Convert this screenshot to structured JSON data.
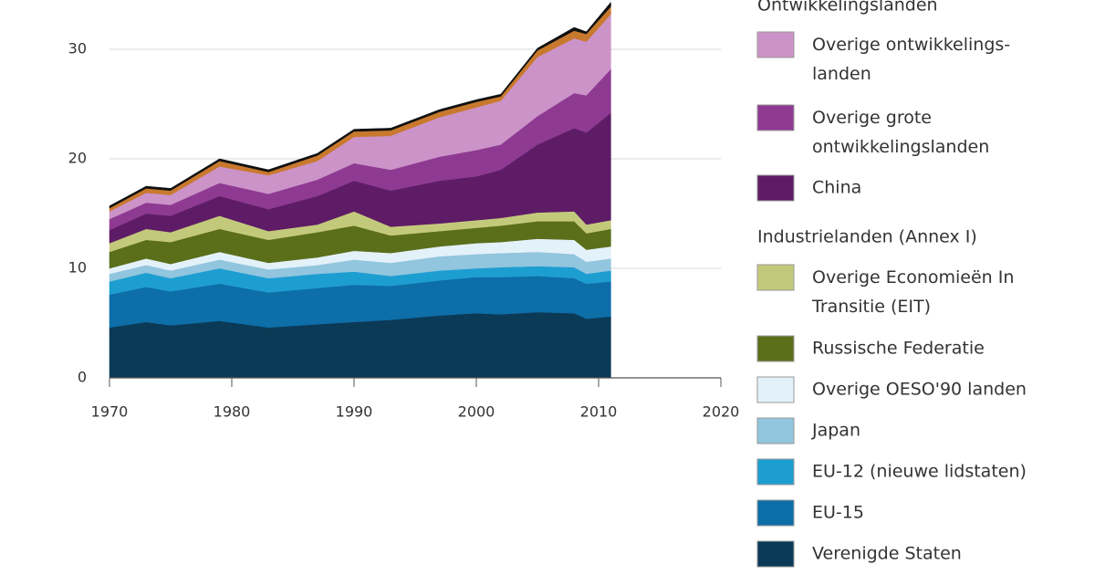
{
  "chart_data": {
    "type": "stacked_area",
    "x": [
      1970,
      1973,
      1975,
      1979,
      1983,
      1987,
      1990,
      1993,
      1997,
      2000,
      2002,
      2005,
      2008,
      2009,
      2011
    ],
    "xlim": [
      1970,
      2020
    ],
    "xticks": [
      1970,
      1980,
      1990,
      2000,
      2010,
      2020
    ],
    "ylim": [
      0,
      34.5
    ],
    "yticks": [
      0,
      10,
      20,
      30
    ],
    "grid": true,
    "legend_headings": [
      "Ontwikkelingslanden",
      "Industrielanden (Annex I)"
    ],
    "series": [
      {
        "name": "Verenigde Staten",
        "color": "#0b3a57",
        "values": [
          4.6,
          5.1,
          4.8,
          5.2,
          4.6,
          4.9,
          5.1,
          5.3,
          5.7,
          5.9,
          5.8,
          6.0,
          5.9,
          5.4,
          5.6
        ]
      },
      {
        "name": "EU-15",
        "color": "#0d6ea8",
        "values": [
          3.0,
          3.2,
          3.1,
          3.4,
          3.2,
          3.3,
          3.4,
          3.1,
          3.2,
          3.3,
          3.4,
          3.3,
          3.2,
          3.2,
          3.2
        ]
      },
      {
        "name": "EU-12 (nieuwe lidstaten)",
        "color": "#1d9ed1",
        "values": [
          1.2,
          1.3,
          1.2,
          1.4,
          1.3,
          1.3,
          1.2,
          0.9,
          0.9,
          0.8,
          0.9,
          0.9,
          1.0,
          0.9,
          1.0
        ]
      },
      {
        "name": "Japan",
        "color": "#92c5de",
        "values": [
          0.7,
          0.7,
          0.7,
          0.8,
          0.8,
          0.8,
          1.1,
          1.2,
          1.3,
          1.3,
          1.3,
          1.3,
          1.2,
          1.1,
          1.1
        ]
      },
      {
        "name": "Overige OESO'90 landen",
        "color": "#e3f1f9",
        "values": [
          0.5,
          0.6,
          0.6,
          0.7,
          0.6,
          0.7,
          0.8,
          0.9,
          0.9,
          1.0,
          1.0,
          1.2,
          1.3,
          1.1,
          1.1
        ]
      },
      {
        "name": "Russische Federatie",
        "color": "#5b6e1a",
        "values": [
          1.5,
          1.7,
          2.0,
          2.1,
          2.1,
          2.3,
          2.3,
          1.6,
          1.4,
          1.4,
          1.5,
          1.6,
          1.7,
          1.5,
          1.6
        ]
      },
      {
        "name": "Overige Economieën In\nTransitie (EIT)",
        "color": "#c3c97b",
        "values": [
          0.8,
          1.0,
          0.9,
          1.2,
          0.8,
          0.7,
          1.3,
          0.8,
          0.7,
          0.7,
          0.7,
          0.8,
          0.9,
          0.8,
          0.8
        ]
      },
      {
        "name": "China",
        "color": "#5e1c66",
        "values": [
          1.2,
          1.4,
          1.5,
          1.8,
          2.0,
          2.6,
          2.8,
          3.3,
          3.9,
          4.0,
          4.4,
          6.2,
          7.6,
          8.4,
          9.8
        ]
      },
      {
        "name": "Overige grote\nontwikkelingslanden",
        "color": "#8e3a92",
        "values": [
          1.0,
          1.0,
          1.0,
          1.2,
          1.4,
          1.5,
          1.6,
          1.9,
          2.2,
          2.4,
          2.3,
          2.6,
          3.2,
          3.4,
          4.0
        ]
      },
      {
        "name": "Overige ontwikkelings-\nlanden",
        "color": "#cc93c8",
        "values": [
          0.7,
          0.9,
          0.9,
          1.5,
          1.7,
          1.7,
          2.4,
          3.1,
          3.6,
          3.9,
          4.0,
          5.4,
          5.0,
          4.9,
          5.0
        ]
      },
      {
        "color": "#c8792e",
        "values": [
          0.3,
          0.4,
          0.4,
          0.5,
          0.3,
          0.5,
          0.5,
          0.5,
          0.5,
          0.5,
          0.4,
          0.6,
          0.7,
          0.7,
          0.7
        ]
      },
      {
        "color": "#111111",
        "values": [
          0.2,
          0.2,
          0.2,
          0.2,
          0.2,
          0.2,
          0.2,
          0.2,
          0.2,
          0.2,
          0.2,
          0.2,
          0.3,
          0.2,
          0.4
        ]
      }
    ]
  }
}
